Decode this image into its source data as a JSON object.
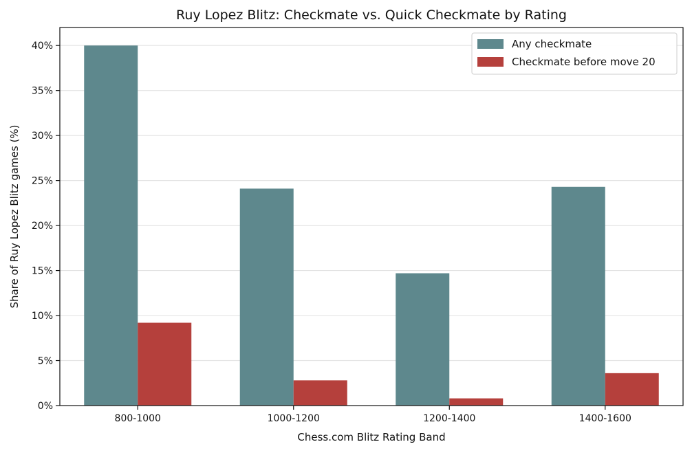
{
  "chart_data": {
    "type": "bar",
    "title": "Ruy Lopez Blitz: Checkmate vs. Quick Checkmate by Rating",
    "xlabel": "Chess.com Blitz Rating Band",
    "ylabel": "Share of Ruy Lopez Blitz games (%)",
    "categories": [
      "800-1000",
      "1000-1200",
      "1200-1400",
      "1400-1600"
    ],
    "series": [
      {
        "name": "Any checkmate",
        "color": "#5e888d",
        "values": [
          40.0,
          24.1,
          14.7,
          24.3
        ]
      },
      {
        "name": "Checkmate before move 20",
        "color": "#b5403c",
        "values": [
          9.2,
          2.8,
          0.8,
          3.6
        ]
      }
    ],
    "ylim": [
      0,
      42
    ],
    "yticks": [
      0,
      5,
      10,
      15,
      20,
      25,
      30,
      35,
      40
    ],
    "ytick_suffix": "%",
    "grid": "horizontal",
    "legend_position": "top-right"
  }
}
